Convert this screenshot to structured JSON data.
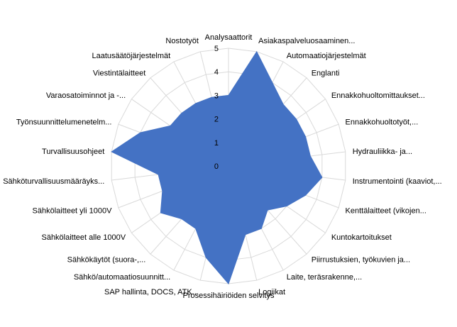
{
  "chart_data": {
    "type": "radar",
    "title": "",
    "categories": [
      "Analysaattorit",
      "Asiakaspalveluosaaminen...",
      "Automaatiojärjestelmät",
      "Englanti",
      "Ennakkohuoltomittaukset...",
      "Ennakkohuoltotyöt,...",
      "Hydrauliikka- ja...",
      "Instrumentointi (kaaviot,...",
      "Kenttälaitteet (vikojen...",
      "Kuntokartoitukset",
      "Piirrustuksien, työkuvien ja...",
      "Laite, teräsrakenne,...",
      "Logiikat",
      "Prosessihäiriöiden selvitys",
      "SAP hallinta, DOCS, ATK...",
      "Sähkö/automaatiosuunnitt...",
      "Sähkökäytöt (suora-,...",
      "Sähkölaitteet alle 1000V",
      "Sähkölaitteet yli 1000V",
      "Sähköturvallisuusmääräyks...",
      "Turvallisuusohjeet",
      "Työnsuunnittelumenetelm...",
      "Varaosatoiminnot ja -...",
      "Viestintälaitteet",
      "Laatusäätöjärjestelmät",
      "Nostotyöt"
    ],
    "series": [
      {
        "values": [
          3,
          5,
          4,
          3.5,
          3.5,
          3.5,
          3.5,
          4,
          3.5,
          3,
          2.5,
          3,
          3,
          5,
          4,
          3,
          3,
          3.5,
          3,
          3,
          5,
          4,
          3,
          3,
          3,
          3
        ]
      }
    ],
    "ylim": [
      0,
      5
    ],
    "ticks": [
      "0",
      "1",
      "2",
      "3",
      "4",
      "5"
    ],
    "grid": true,
    "legend": "none",
    "colors": {
      "fill": "#4472c4",
      "grid": "#d9d9d9",
      "tick": "#000000"
    }
  }
}
